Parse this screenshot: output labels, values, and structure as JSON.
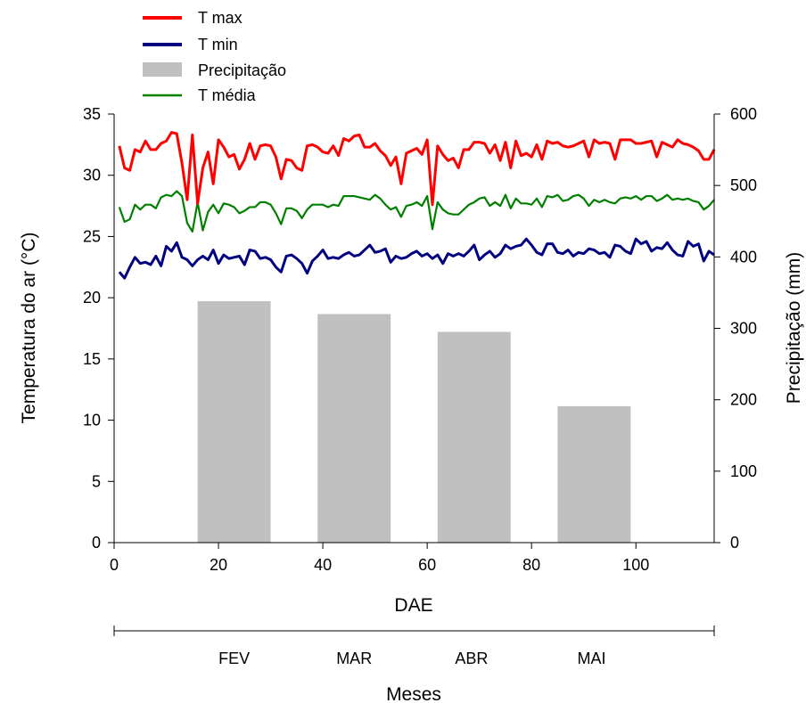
{
  "chart_data": {
    "type": "bar+line",
    "xlabel": "DAE",
    "ylabel_left": "Temperatura do ar (°C)",
    "ylabel_right": "Precipitação (mm)",
    "x_range": [
      0,
      115
    ],
    "x_ticks": [
      0,
      20,
      40,
      60,
      80,
      100
    ],
    "y_left_range": [
      0,
      35
    ],
    "y_left_ticks": [
      0,
      5,
      10,
      15,
      20,
      25,
      30,
      35
    ],
    "y_right_range": [
      0,
      600
    ],
    "y_right_ticks": [
      0,
      100,
      200,
      300,
      400,
      500,
      600
    ],
    "grid": false,
    "legend_placement": "top-left",
    "secondary_axis": {
      "title": "Meses",
      "months": [
        {
          "label": "FEV",
          "center_dae": 23
        },
        {
          "label": "MAR",
          "center_dae": 46
        },
        {
          "label": "ABR",
          "center_dae": 68.5
        },
        {
          "label": "MAI",
          "center_dae": 91.5
        }
      ]
    },
    "precipitation": {
      "name": "Precipitação",
      "color": "#c0c0c0",
      "bars": [
        {
          "month": "FEV",
          "x_start": 16,
          "x_end": 30,
          "value": 338
        },
        {
          "month": "MAR",
          "x_start": 39,
          "x_end": 53,
          "value": 320
        },
        {
          "month": "ABR",
          "x_start": 62,
          "x_end": 76,
          "value": 295
        },
        {
          "month": "MAI",
          "x_start": 85,
          "x_end": 99,
          "value": 191
        }
      ]
    },
    "series": [
      {
        "name": "T max",
        "color": "#ff0000",
        "values": [
          32.4,
          30.6,
          30.4,
          32.1,
          31.9,
          32.8,
          32.1,
          32.1,
          32.6,
          32.8,
          33.5,
          33.4,
          31.0,
          28.0,
          33.3,
          27.7,
          30.6,
          31.9,
          29.3,
          32.9,
          32.3,
          31.5,
          31.7,
          30.5,
          31.3,
          32.6,
          31.3,
          32.4,
          32.5,
          32.4,
          31.5,
          29.7,
          31.3,
          31.2,
          30.6,
          30.4,
          32.4,
          32.5,
          32.3,
          31.9,
          31.8,
          32.4,
          31.6,
          33.0,
          32.8,
          33.2,
          33.3,
          32.3,
          32.3,
          32.6,
          32.0,
          31.6,
          30.8,
          31.5,
          29.3,
          31.8,
          32.0,
          32.2,
          31.7,
          32.9,
          27.6,
          32.4,
          31.7,
          31.2,
          31.4,
          30.6,
          32.1,
          32.1,
          32.7,
          32.7,
          32.6,
          31.8,
          32.5,
          31.2,
          32.7,
          30.6,
          32.8,
          31.6,
          31.8,
          31.5,
          32.5,
          31.3,
          32.8,
          32.6,
          32.7,
          32.4,
          32.3,
          32.4,
          32.6,
          32.8,
          31.5,
          32.9,
          32.6,
          32.7,
          32.6,
          31.3,
          32.9,
          32.9,
          32.9,
          32.6,
          32.6,
          32.7,
          32.8,
          31.5,
          32.7,
          32.5,
          32.3,
          32.9,
          32.6,
          32.5,
          32.3,
          32.0,
          31.3,
          31.3,
          32.1
        ],
        "x_start": 1
      },
      {
        "name": "T min",
        "color": "#000080",
        "values": [
          22.1,
          21.6,
          22.5,
          23.3,
          22.8,
          22.9,
          22.7,
          23.4,
          22.6,
          24.2,
          23.8,
          24.5,
          23.3,
          23.1,
          22.6,
          23.1,
          23.4,
          23.1,
          23.9,
          22.8,
          23.5,
          23.2,
          23.3,
          23.4,
          22.7,
          23.9,
          23.8,
          23.2,
          23.3,
          23.1,
          22.5,
          22.1,
          23.4,
          23.5,
          23.2,
          22.8,
          22.0,
          23.0,
          23.4,
          23.9,
          23.2,
          23.3,
          23.2,
          23.5,
          23.7,
          23.4,
          23.5,
          23.9,
          24.3,
          23.7,
          23.8,
          24.0,
          22.9,
          23.4,
          23.2,
          23.3,
          23.6,
          23.8,
          23.4,
          23.6,
          23.2,
          23.5,
          22.8,
          23.6,
          23.4,
          23.6,
          23.4,
          23.8,
          24.3,
          23.1,
          23.5,
          23.8,
          23.3,
          23.6,
          24.3,
          24.0,
          24.2,
          24.3,
          24.8,
          24.3,
          23.7,
          23.5,
          24.4,
          24.4,
          23.7,
          23.6,
          23.9,
          23.4,
          23.7,
          23.6,
          24.0,
          23.9,
          23.6,
          23.7,
          23.3,
          24.3,
          24.2,
          23.8,
          23.6,
          24.8,
          24.4,
          24.6,
          23.8,
          24.1,
          24.0,
          24.5,
          23.9,
          23.5,
          23.4,
          24.6,
          24.2,
          24.4,
          23.0,
          23.8,
          23.5
        ],
        "x_start": 1
      },
      {
        "name": "T média",
        "color": "#008000",
        "values": [
          27.4,
          26.2,
          26.4,
          27.6,
          27.2,
          27.6,
          27.6,
          27.3,
          28.2,
          28.4,
          28.3,
          28.7,
          28.3,
          26.1,
          25.4,
          27.8,
          25.5,
          27.0,
          27.6,
          26.9,
          27.7,
          27.6,
          27.4,
          26.9,
          27.1,
          27.4,
          27.4,
          27.8,
          27.8,
          27.6,
          26.9,
          26.0,
          27.3,
          27.3,
          27.1,
          26.5,
          27.2,
          27.6,
          27.6,
          27.6,
          27.4,
          27.6,
          27.5,
          28.3,
          28.3,
          28.3,
          28.2,
          28.1,
          28.0,
          28.4,
          28.1,
          27.6,
          27.2,
          27.4,
          26.6,
          27.5,
          27.6,
          27.8,
          27.5,
          28.3,
          25.6,
          27.8,
          27.2,
          26.9,
          26.8,
          26.8,
          27.2,
          27.6,
          27.8,
          28.1,
          28.2,
          27.5,
          27.8,
          27.5,
          28.4,
          27.3,
          28.1,
          27.7,
          27.7,
          27.6,
          28.1,
          27.4,
          28.3,
          28.2,
          28.4,
          27.9,
          28.0,
          28.3,
          28.4,
          28.1,
          27.5,
          28.0,
          27.8,
          28.0,
          27.8,
          27.7,
          28.1,
          28.2,
          28.1,
          28.3,
          28.0,
          28.3,
          28.3,
          27.9,
          28.1,
          28.4,
          28.0,
          28.1,
          28.0,
          28.1,
          27.9,
          27.8,
          27.2,
          27.5,
          28.0
        ],
        "x_start": 1
      }
    ]
  }
}
